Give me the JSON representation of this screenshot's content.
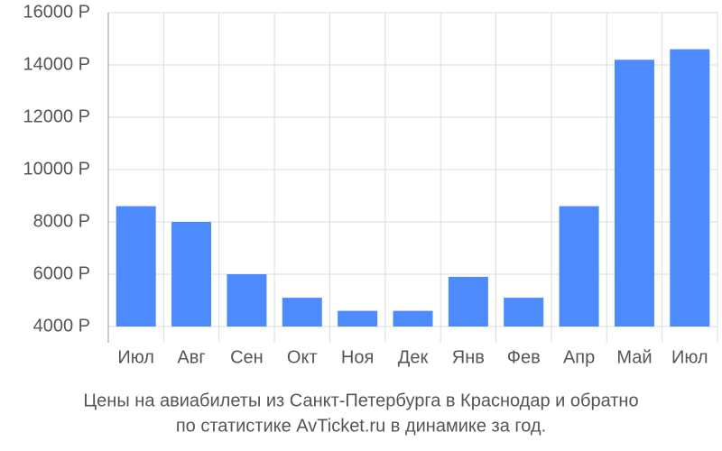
{
  "chart_data": {
    "type": "bar",
    "title": [
      "Цены на авиабилеты из Санкт-Петербурга в Краснодар и обратно",
      "по статистике AvTicket.ru в динамике за год."
    ],
    "categories": [
      "Июл",
      "Авг",
      "Сен",
      "Окт",
      "Ноя",
      "Дек",
      "Янв",
      "Фев",
      "Апр",
      "Май",
      "Июл"
    ],
    "values": [
      8600,
      8000,
      6000,
      5100,
      4600,
      4600,
      5900,
      5100,
      8600,
      14200,
      14600
    ],
    "color": "#4d8afc",
    "ylim": [
      4000,
      16000
    ],
    "yticks": [
      {
        "value": 4000,
        "label": "4000 Р"
      },
      {
        "value": 6000,
        "label": "6000 Р"
      },
      {
        "value": 8000,
        "label": "8000 Р"
      },
      {
        "value": 10000,
        "label": "10000 Р"
      },
      {
        "value": 12000,
        "label": "12000 Р"
      },
      {
        "value": 14000,
        "label": "14000 Р"
      },
      {
        "value": 16000,
        "label": "16000 Р"
      }
    ],
    "grid": true
  }
}
